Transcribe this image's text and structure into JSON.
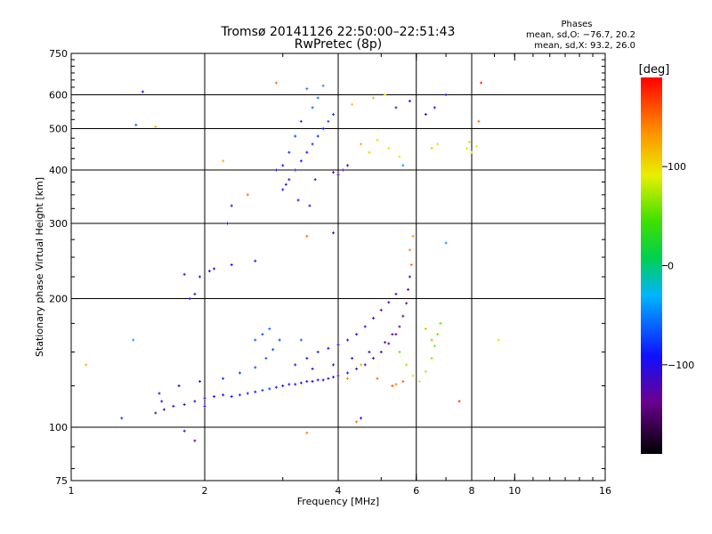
{
  "title": "Tromsø 20141126 22:50:00–22:51:43",
  "subtitle": "RwPretec (8p)",
  "stats": {
    "header": "Phases",
    "line_o": "mean, sd,O: −76.7, 20.2",
    "line_x": "mean, sd,X:  93.2, 26.0"
  },
  "colorbar": {
    "unit_label": "[deg]",
    "ticks": [
      {
        "value": 100,
        "label": "100"
      },
      {
        "value": 0,
        "label": "0"
      },
      {
        "value": -100,
        "label": "−100"
      }
    ],
    "range": [
      -190,
      190
    ]
  },
  "chart_data": {
    "type": "scatter",
    "xscale": "log",
    "yscale": "log",
    "xlabel": "Frequency [MHz]",
    "ylabel": "Stationary phase Virtual Height [km]",
    "xlim": [
      1,
      16
    ],
    "ylim": [
      75,
      750
    ],
    "xticks": [
      {
        "v": 1,
        "label": "1"
      },
      {
        "v": 2,
        "label": "2"
      },
      {
        "v": 4,
        "label": "4"
      },
      {
        "v": 6,
        "label": "6"
      },
      {
        "v": 8,
        "label": "8"
      },
      {
        "v": 10,
        "label": "10"
      },
      {
        "v": 16,
        "label": "16"
      }
    ],
    "yticks": [
      {
        "v": 75,
        "label": "75"
      },
      {
        "v": 100,
        "label": "100"
      },
      {
        "v": 200,
        "label": "200"
      },
      {
        "v": 300,
        "label": "300"
      },
      {
        "v": 400,
        "label": "400"
      },
      {
        "v": 500,
        "label": "500"
      },
      {
        "v": 600,
        "label": "600"
      },
      {
        "v": 750,
        "label": "750"
      }
    ],
    "grid_x": [
      2,
      4,
      6,
      8
    ],
    "grid_y": [
      100,
      200,
      300,
      400,
      500,
      600
    ],
    "points": [
      [
        1.55,
        108,
        -110
      ],
      [
        1.62,
        110,
        -115
      ],
      [
        1.7,
        112,
        -100
      ],
      [
        1.8,
        113,
        -120
      ],
      [
        1.9,
        115,
        -105
      ],
      [
        2.0,
        117,
        -110
      ],
      [
        2.1,
        118,
        -95
      ],
      [
        2.2,
        119,
        -100
      ],
      [
        2.3,
        118,
        -90
      ],
      [
        2.4,
        119,
        -80
      ],
      [
        2.5,
        120,
        -85
      ],
      [
        2.6,
        121,
        -90
      ],
      [
        2.7,
        122,
        -75
      ],
      [
        2.8,
        123,
        -80
      ],
      [
        2.9,
        124,
        -85
      ],
      [
        3.0,
        125,
        -90
      ],
      [
        3.1,
        126,
        -100
      ],
      [
        3.2,
        126,
        -95
      ],
      [
        3.3,
        127,
        -100
      ],
      [
        3.4,
        128,
        -105
      ],
      [
        3.5,
        128,
        -100
      ],
      [
        3.6,
        129,
        -110
      ],
      [
        3.7,
        129,
        -105
      ],
      [
        3.8,
        130,
        -115
      ],
      [
        3.9,
        131,
        -110
      ],
      [
        4.0,
        132,
        -120
      ],
      [
        4.2,
        134,
        -115
      ],
      [
        4.4,
        137,
        -120
      ],
      [
        4.6,
        140,
        -125
      ],
      [
        4.8,
        145,
        -120
      ],
      [
        5.0,
        150,
        -130
      ],
      [
        5.2,
        157,
        -125
      ],
      [
        5.4,
        165,
        -130
      ],
      [
        5.5,
        172,
        -135
      ],
      [
        5.6,
        182,
        -130
      ],
      [
        5.7,
        195,
        -125
      ],
      [
        5.75,
        210,
        -120
      ],
      [
        5.8,
        225,
        -110
      ],
      [
        1.58,
        120,
        -100
      ],
      [
        1.75,
        125,
        -95
      ],
      [
        1.95,
        128,
        -85
      ],
      [
        2.2,
        130,
        -80
      ],
      [
        2.4,
        134,
        -75
      ],
      [
        2.6,
        138,
        -70
      ],
      [
        2.75,
        145,
        -65
      ],
      [
        2.85,
        152,
        -70
      ],
      [
        2.95,
        160,
        -75
      ],
      [
        2.7,
        165,
        -70
      ],
      [
        2.6,
        160,
        -65
      ],
      [
        2.8,
        170,
        -60
      ],
      [
        3.2,
        140,
        -90
      ],
      [
        3.4,
        145,
        -85
      ],
      [
        3.6,
        150,
        -80
      ],
      [
        3.8,
        153,
        -90
      ],
      [
        4.0,
        156,
        -95
      ],
      [
        4.2,
        160,
        -100
      ],
      [
        4.4,
        165,
        -105
      ],
      [
        4.6,
        172,
        -110
      ],
      [
        4.8,
        180,
        -115
      ],
      [
        5.0,
        188,
        -120
      ],
      [
        5.2,
        196,
        -125
      ],
      [
        5.4,
        205,
        -130
      ],
      [
        3.5,
        137,
        -110
      ],
      [
        3.9,
        140,
        -115
      ],
      [
        4.3,
        145,
        -120
      ],
      [
        4.7,
        150,
        -125
      ],
      [
        5.1,
        158,
        -130
      ],
      [
        5.3,
        165,
        -135
      ],
      [
        5.5,
        150,
        60
      ],
      [
        5.7,
        140,
        70
      ],
      [
        5.9,
        132,
        85
      ],
      [
        6.1,
        128,
        90
      ],
      [
        6.3,
        135,
        80
      ],
      [
        6.5,
        145,
        70
      ],
      [
        6.6,
        155,
        65
      ],
      [
        6.7,
        165,
        60
      ],
      [
        6.8,
        175,
        55
      ],
      [
        6.3,
        170,
        120
      ],
      [
        6.5,
        160,
        130
      ],
      [
        5.6,
        128,
        150
      ],
      [
        5.4,
        126,
        140
      ],
      [
        5.8,
        260,
        140
      ],
      [
        5.85,
        240,
        150
      ],
      [
        5.9,
        280,
        130
      ],
      [
        1.85,
        200,
        -110
      ],
      [
        1.9,
        205,
        -120
      ],
      [
        1.95,
        225,
        -115
      ],
      [
        1.8,
        228,
        -105
      ],
      [
        2.05,
        232,
        -100
      ],
      [
        2.3,
        240,
        -95
      ],
      [
        2.6,
        245,
        -100
      ],
      [
        3.0,
        360,
        -90
      ],
      [
        3.1,
        380,
        -95
      ],
      [
        3.2,
        400,
        -85
      ],
      [
        3.3,
        420,
        -90
      ],
      [
        3.4,
        440,
        -95
      ],
      [
        3.5,
        460,
        -80
      ],
      [
        3.6,
        480,
        -85
      ],
      [
        3.7,
        500,
        -90
      ],
      [
        3.8,
        520,
        -70
      ],
      [
        3.9,
        540,
        -75
      ],
      [
        3.5,
        560,
        -60
      ],
      [
        3.6,
        590,
        -55
      ],
      [
        3.4,
        620,
        -50
      ],
      [
        3.7,
        630,
        -40
      ],
      [
        3.3,
        520,
        -80
      ],
      [
        3.2,
        480,
        -75
      ],
      [
        3.1,
        440,
        -85
      ],
      [
        3.0,
        410,
        -95
      ],
      [
        2.9,
        400,
        -100
      ],
      [
        3.05,
        370,
        -110
      ],
      [
        3.25,
        340,
        -105
      ],
      [
        3.45,
        330,
        -110
      ],
      [
        3.55,
        380,
        -100
      ],
      [
        4.0,
        390,
        -120
      ],
      [
        4.1,
        400,
        -115
      ],
      [
        4.2,
        410,
        -110
      ],
      [
        3.9,
        395,
        -125
      ],
      [
        4.5,
        460,
        120
      ],
      [
        4.7,
        440,
        110
      ],
      [
        4.9,
        470,
        100
      ],
      [
        5.2,
        450,
        90
      ],
      [
        5.5,
        430,
        95
      ],
      [
        6.5,
        450,
        110
      ],
      [
        6.7,
        460,
        100
      ],
      [
        7.8,
        450,
        95
      ],
      [
        8.0,
        440,
        100
      ],
      [
        8.2,
        455,
        90
      ],
      [
        7.9,
        465,
        105
      ],
      [
        5.4,
        560,
        -110
      ],
      [
        5.8,
        580,
        -100
      ],
      [
        6.3,
        540,
        -115
      ],
      [
        6.6,
        560,
        -105
      ],
      [
        7.0,
        600,
        -110
      ],
      [
        4.3,
        570,
        110
      ],
      [
        4.8,
        590,
        120
      ],
      [
        5.1,
        600,
        100
      ],
      [
        8.4,
        640,
        170
      ],
      [
        8.3,
        520,
        150
      ],
      [
        5.6,
        410,
        -40
      ],
      [
        1.45,
        610,
        -100
      ],
      [
        1.4,
        510,
        -60
      ],
      [
        1.55,
        505,
        120
      ],
      [
        2.2,
        420,
        120
      ],
      [
        2.5,
        350,
        150
      ],
      [
        2.3,
        330,
        -110
      ],
      [
        2.25,
        300,
        -100
      ],
      [
        2.9,
        640,
        150
      ],
      [
        2.1,
        235,
        -100
      ],
      [
        3.4,
        280,
        150
      ],
      [
        3.9,
        285,
        -120
      ],
      [
        1.08,
        140,
        120
      ],
      [
        1.3,
        105,
        -80
      ],
      [
        1.38,
        160,
        -40
      ],
      [
        1.8,
        98,
        -120
      ],
      [
        1.9,
        93,
        -130
      ],
      [
        3.4,
        97,
        140
      ],
      [
        4.4,
        103,
        150
      ],
      [
        4.5,
        105,
        -100
      ],
      [
        7.5,
        115,
        170
      ],
      [
        9.2,
        160,
        100
      ],
      [
        3.3,
        160,
        -60
      ],
      [
        7.0,
        270,
        -40
      ],
      [
        4.5,
        140,
        120
      ],
      [
        4.9,
        130,
        150
      ],
      [
        5.3,
        125,
        160
      ],
      [
        4.2,
        130,
        140
      ],
      [
        1.6,
        115,
        -105
      ],
      [
        2.0,
        112,
        -95
      ]
    ]
  }
}
